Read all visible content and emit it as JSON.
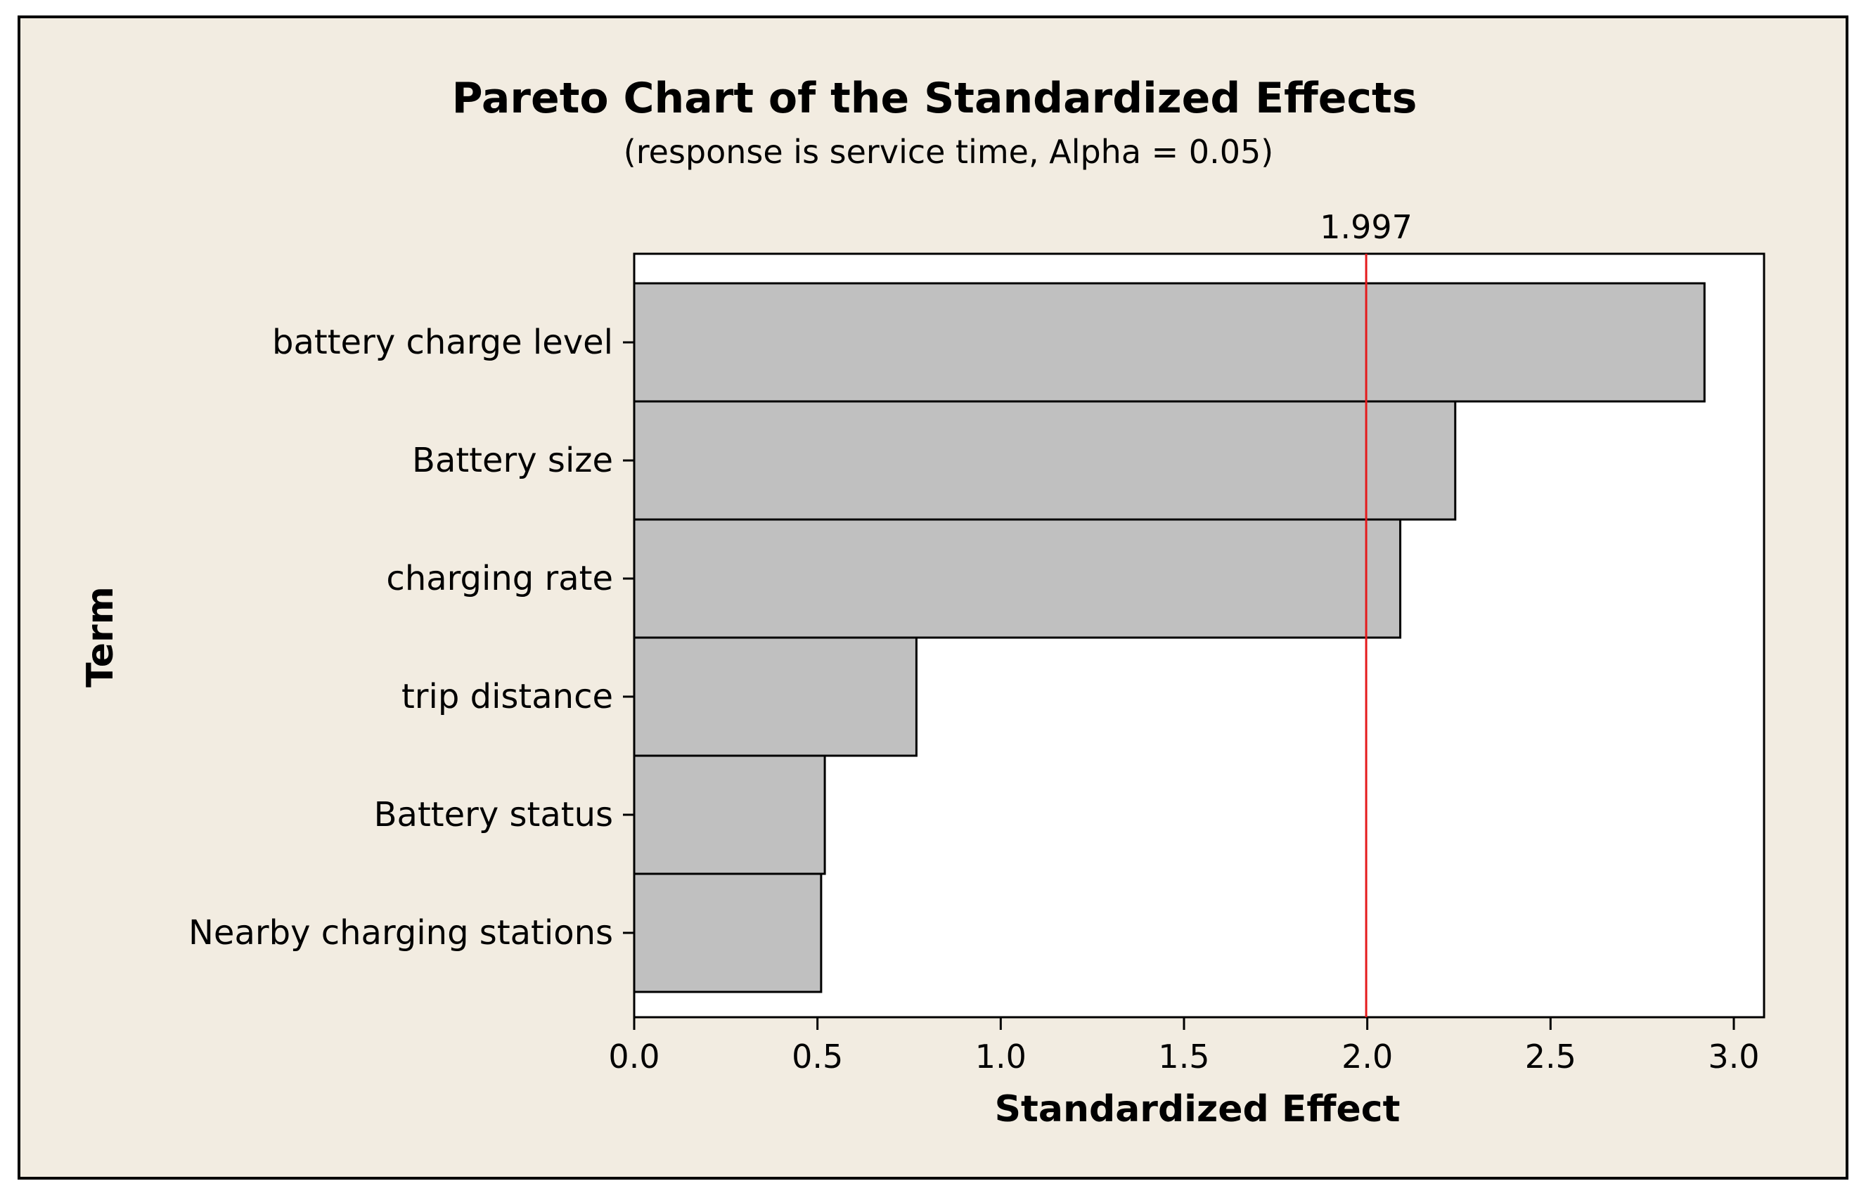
{
  "chart_data": {
    "type": "bar",
    "orientation": "horizontal",
    "title": "Pareto Chart of the Standardized Effects",
    "subtitle": "(response is service time, Alpha = 0.05)",
    "xlabel": "Standardized Effect",
    "ylabel": "Term",
    "categories": [
      "battery charge level",
      "Battery size",
      "charging rate",
      "trip distance",
      "Battery status",
      "Nearby charging stations"
    ],
    "values": [
      2.92,
      2.24,
      2.09,
      0.77,
      0.52,
      0.51
    ],
    "xlim": [
      0.0,
      3.1
    ],
    "xticks": [
      "0.0",
      "0.5",
      "1.0",
      "1.5",
      "2.0",
      "2.5",
      "3.0"
    ],
    "reference_line": {
      "value": 1.997,
      "label": "1.997"
    },
    "grid": false,
    "legend": "none"
  },
  "colors": {
    "outer_background": "#f2ece1",
    "plot_background": "#ffffff",
    "bar_fill": "#c0c0c0",
    "bar_stroke": "#000000",
    "reference_line": "#e41a1c"
  }
}
